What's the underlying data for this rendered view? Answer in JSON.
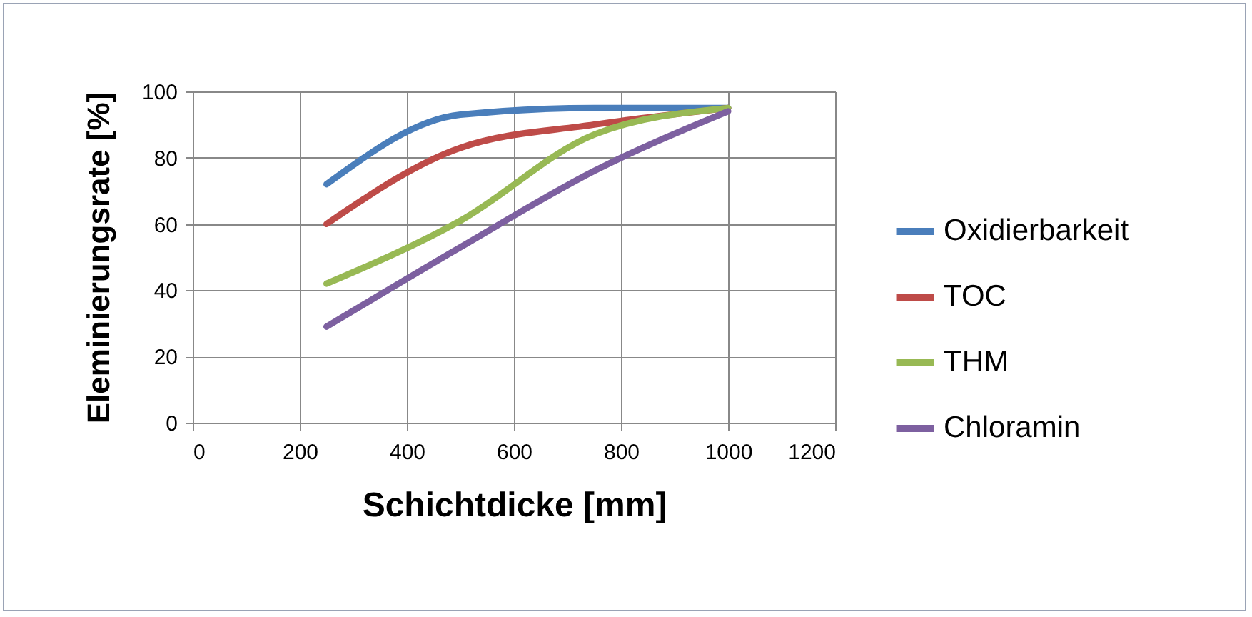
{
  "chart_data": {
    "type": "line",
    "xlabel": "Schichtdicke [mm]",
    "ylabel": "Eleminierungsrate [%]",
    "x": [
      250,
      500,
      750,
      1000
    ],
    "series": [
      {
        "name": "Oxidierbarkeit",
        "color": "#4a7ebb",
        "values": [
          72,
          93,
          95,
          95
        ]
      },
      {
        "name": "TOC",
        "color": "#be4b48",
        "values": [
          60,
          83,
          90,
          95
        ]
      },
      {
        "name": "THM",
        "color": "#98b954",
        "values": [
          42,
          61,
          87,
          95
        ]
      },
      {
        "name": "Chloramin",
        "color": "#7d60a0",
        "values": [
          29,
          53,
          76,
          94
        ]
      }
    ],
    "xlim": [
      0,
      1200
    ],
    "xticks": [
      0,
      200,
      400,
      600,
      800,
      1000,
      1200
    ],
    "ylim": [
      0,
      100
    ],
    "yticks": [
      0,
      20,
      40,
      60,
      80,
      100
    ],
    "grid": true,
    "legend": "right",
    "marker": "none",
    "line_style": "solid"
  }
}
